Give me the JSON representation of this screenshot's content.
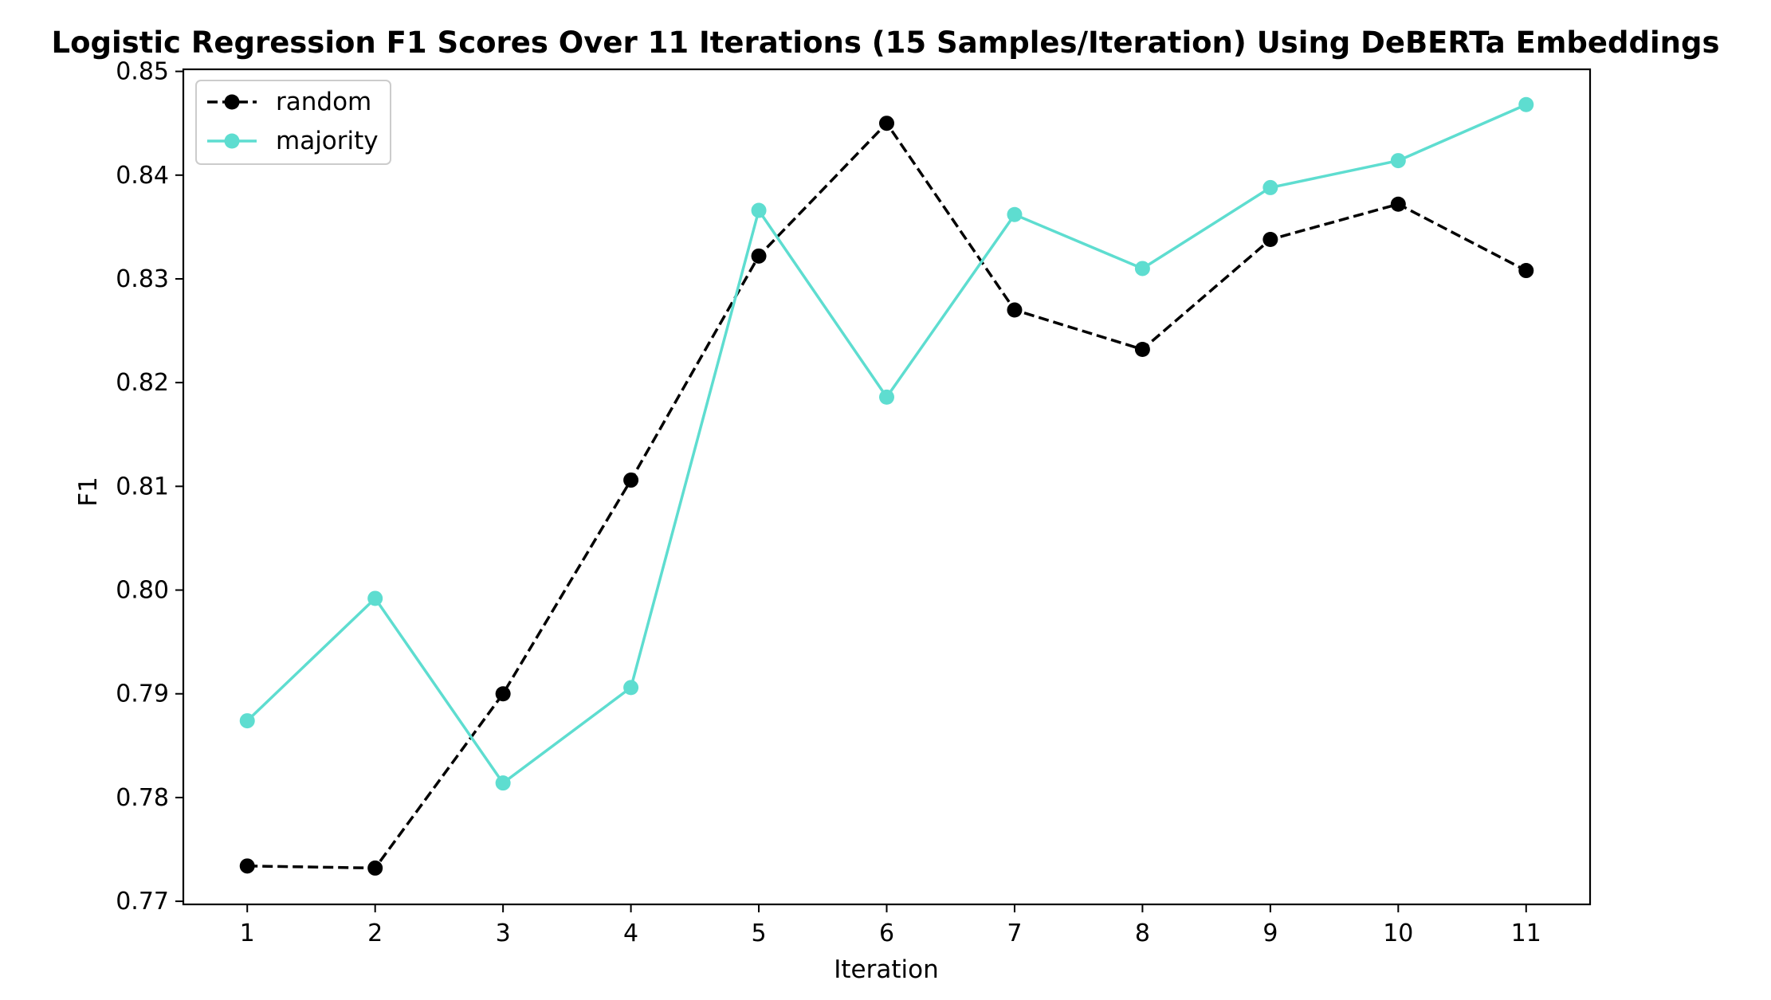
{
  "chart_data": {
    "type": "line",
    "title": "Logistic Regression F1 Scores Over 11 Iterations (15 Samples/Iteration) Using DeBERTa Embeddings",
    "xlabel": "Iteration",
    "ylabel": "F1",
    "x": [
      1,
      2,
      3,
      4,
      5,
      6,
      7,
      8,
      9,
      10,
      11
    ],
    "xlim": [
      0.5,
      11.5
    ],
    "ylim": [
      0.7697,
      0.8502
    ],
    "yticks": [
      "0.77",
      "0.78",
      "0.79",
      "0.80",
      "0.81",
      "0.82",
      "0.83",
      "0.84",
      "0.85"
    ],
    "grid": false,
    "legend_position": "top-left",
    "series": [
      {
        "name": "random",
        "color": "#000000",
        "line_style": "dashed",
        "marker": "circle",
        "values": [
          0.7734,
          0.7732,
          0.79,
          0.8106,
          0.8322,
          0.845,
          0.827,
          0.8232,
          0.8338,
          0.8372,
          0.8308
        ]
      },
      {
        "name": "majority",
        "color": "#5eddd0",
        "line_style": "solid",
        "marker": "circle",
        "values": [
          0.7874,
          0.7992,
          0.7814,
          0.7906,
          0.8366,
          0.8186,
          0.8362,
          0.831,
          0.8388,
          0.8414,
          0.8468
        ]
      }
    ]
  }
}
